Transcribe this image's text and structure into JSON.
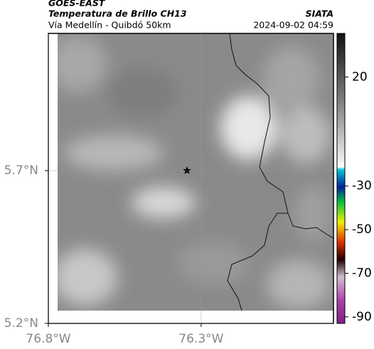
{
  "header": {
    "title": "GOES-EAST",
    "subtitle": "Temperatura de Brillo CH13",
    "route": "Vía Medellín - Quibdó 50km",
    "source": "SIATA",
    "timestamp": "2024-09-02 04:59"
  },
  "map": {
    "lon_range": [
      -76.8,
      -75.867
    ],
    "lat_range": [
      5.2,
      6.149
    ],
    "lon_ticks": [
      {
        "value": -76.8,
        "label": "76.8°W"
      },
      {
        "value": -76.3,
        "label": "76.3°W"
      }
    ],
    "lat_ticks": [
      {
        "value": 5.2,
        "label": "5.2°N"
      },
      {
        "value": 5.7,
        "label": "5.7°N"
      }
    ],
    "grid": true
  },
  "colorbar": {
    "range": [
      -93,
      40
    ],
    "ticks": [
      20,
      -30,
      -50,
      -70,
      -90
    ]
  }
}
